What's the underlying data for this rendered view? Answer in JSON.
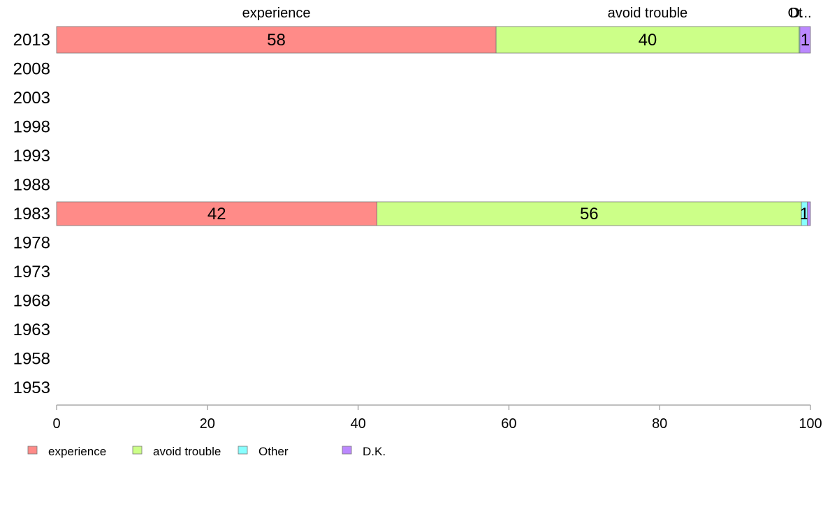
{
  "chart_data": {
    "type": "bar",
    "orientation": "horizontal",
    "stacked": true,
    "categories": [
      "2013",
      "2008",
      "2003",
      "1998",
      "1993",
      "1988",
      "1983",
      "1978",
      "1973",
      "1968",
      "1963",
      "1958",
      "1953"
    ],
    "series": [
      {
        "name": "experience",
        "color": "#FF8B88",
        "values": [
          58.3,
          null,
          null,
          null,
          null,
          null,
          42.5,
          null,
          null,
          null,
          null,
          null,
          null
        ],
        "labels": [
          "58",
          "",
          "",
          "",
          "",
          "",
          "42",
          "",
          "",
          "",
          "",
          "",
          ""
        ]
      },
      {
        "name": "avoid trouble",
        "color": "#CCFF88",
        "values": [
          40.2,
          null,
          null,
          null,
          null,
          null,
          56.3,
          null,
          null,
          null,
          null,
          null,
          null
        ],
        "labels": [
          "40",
          "",
          "",
          "",
          "",
          "",
          "56",
          "",
          "",
          "",
          "",
          "",
          ""
        ]
      },
      {
        "name": "Other",
        "color": "#88FFFF",
        "values": [
          0.1,
          null,
          null,
          null,
          null,
          null,
          0.8,
          null,
          null,
          null,
          null,
          null,
          null
        ],
        "labels": [
          "",
          "",
          "",
          "",
          "",
          "",
          "1",
          "",
          "",
          "",
          "",
          "",
          ""
        ]
      },
      {
        "name": "D.K.",
        "color": "#BB88FF",
        "values": [
          1.4,
          null,
          null,
          null,
          null,
          null,
          0.4,
          null,
          null,
          null,
          null,
          null,
          null
        ],
        "labels": [
          "1",
          "",
          "",
          "",
          "",
          "",
          "",
          "",
          "",
          "",
          "",
          "",
          ""
        ]
      }
    ],
    "top_labels": [
      "experience",
      "avoid trouble",
      "Ot",
      "D..."
    ],
    "xlim": [
      0,
      100
    ],
    "xticks": [
      0,
      20,
      40,
      60,
      80,
      100
    ],
    "xtick_labels": [
      "0",
      "20",
      "40",
      "60",
      "80",
      "100"
    ],
    "xlabel": "",
    "ylabel": "",
    "title": "",
    "grid": false,
    "legend": {
      "position": "bottom-left",
      "entries": [
        "experience",
        "avoid trouble",
        "Other",
        "D.K."
      ]
    },
    "axis_color": "#AAAAAA",
    "bar_border_color": "#777777"
  }
}
